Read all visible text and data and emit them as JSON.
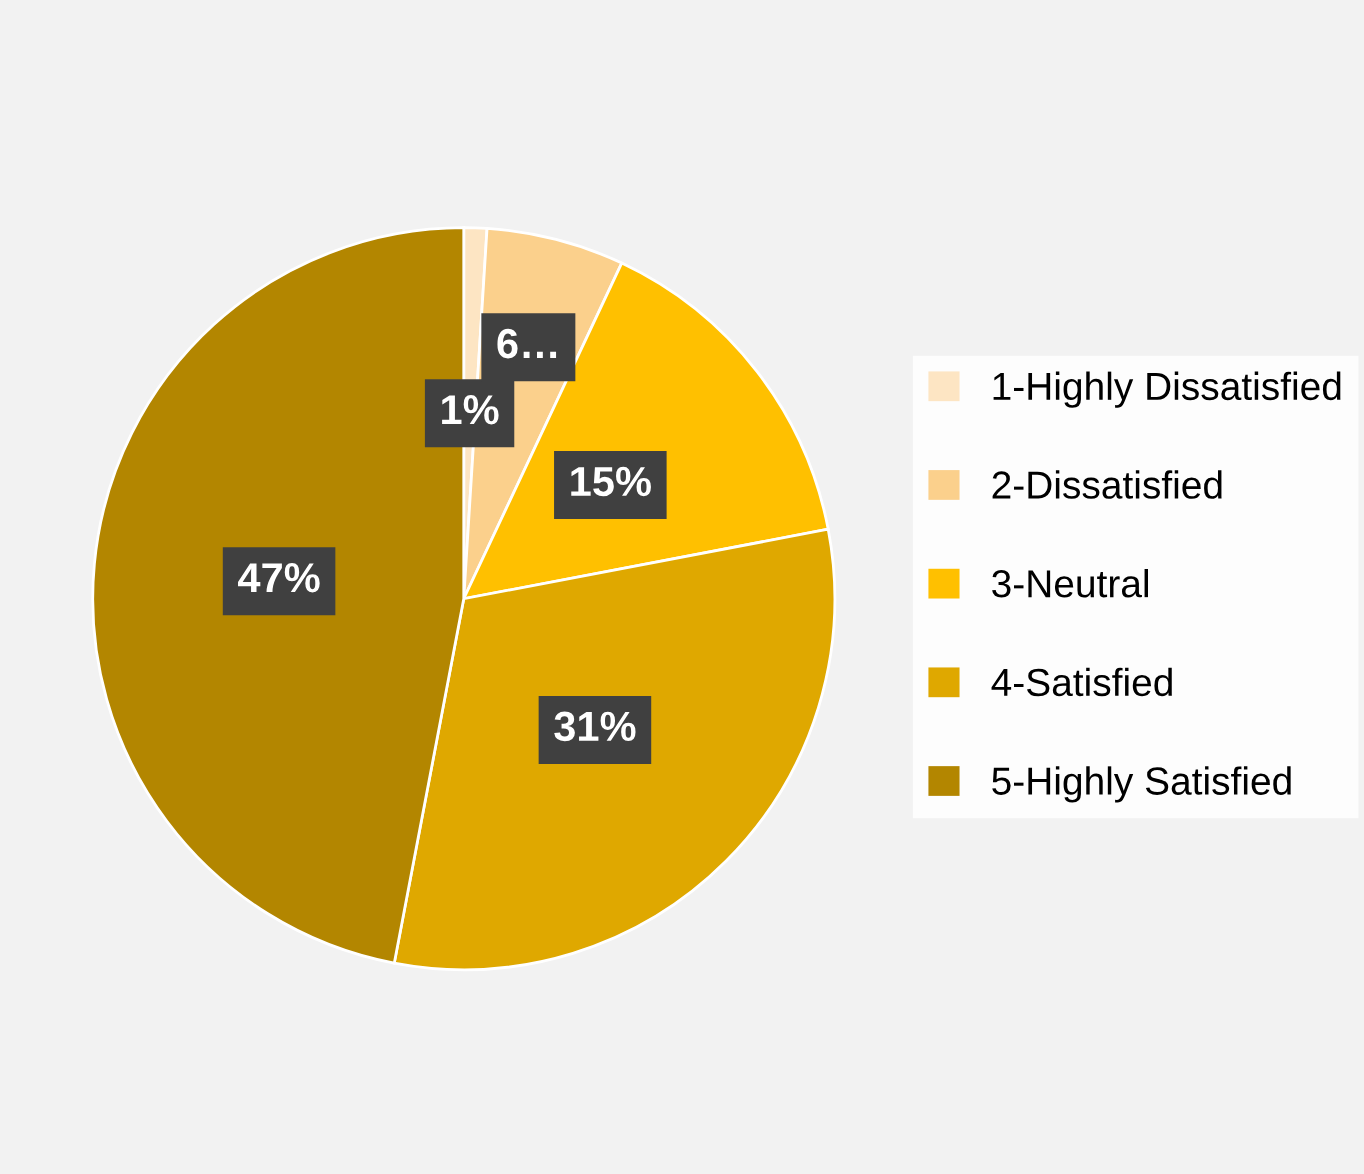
{
  "chart_data": {
    "type": "pie",
    "categories": [
      "1-Highly Dissatisfied",
      "2-Dissatisfied",
      "3-Neutral",
      "4-Satisfied",
      "5-Highly Satisfied"
    ],
    "values": [
      1,
      6,
      15,
      31,
      47
    ],
    "colors": [
      "#fde5c3",
      "#fbd08c",
      "#ffc000",
      "#dfa800",
      "#b38600"
    ],
    "value_labels": [
      "1%",
      "6…",
      "15%",
      "31%",
      "47%"
    ],
    "legend": "right"
  }
}
